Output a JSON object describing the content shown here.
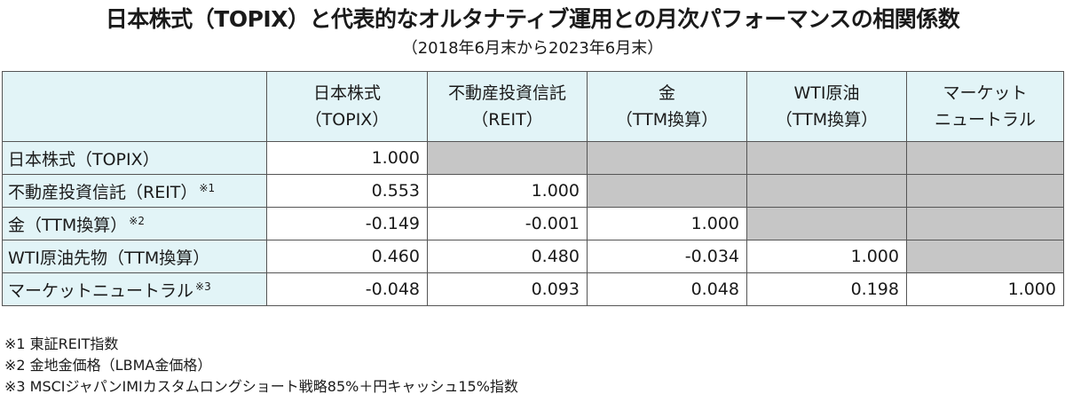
{
  "title": "日本株式（TOPIX）と代表的なオルタナティブ運用との月次パフォーマンスの相関係数",
  "subtitle": "（2018年6月末から2023年6月末）",
  "table": {
    "columns": [
      {
        "line1": "日本株式",
        "line2": "（TOPIX）"
      },
      {
        "line1": "不動産投資信託",
        "line2": "（REIT）"
      },
      {
        "line1": "金",
        "line2": "（TTM換算）"
      },
      {
        "line1": "WTI原油",
        "line2": "（TTM換算）"
      },
      {
        "line1": "マーケット",
        "line2": "ニュートラル"
      }
    ],
    "rows": [
      {
        "label": "日本株式（TOPIX）",
        "note": "",
        "cells": [
          "1.000",
          "",
          "",
          "",
          ""
        ]
      },
      {
        "label": "不動産投資信託（REIT）",
        "note": "※1",
        "cells": [
          "0.553",
          "1.000",
          "",
          "",
          ""
        ]
      },
      {
        "label": "金（TTM換算）",
        "note": "※2",
        "cells": [
          "-0.149",
          "-0.001",
          "1.000",
          "",
          ""
        ]
      },
      {
        "label": "WTI原油先物（TTM換算）",
        "note": "",
        "cells": [
          "0.460",
          "0.480",
          "-0.034",
          "1.000",
          ""
        ]
      },
      {
        "label": "マーケットニュートラル",
        "note": "※3",
        "cells": [
          "-0.048",
          "0.093",
          "0.048",
          "0.198",
          "1.000"
        ]
      }
    ]
  },
  "footnotes": [
    "※1 東証REIT指数",
    "※2 金地金価格（LBMA金価格）",
    "※3 MSCIジャパンIMIカスタムロングショート戦略85%＋円キャッシュ15%指数"
  ],
  "colors": {
    "header_bg": "#e2f4f7",
    "empty_cell": "#c6c6c6",
    "border": "#555555"
  }
}
